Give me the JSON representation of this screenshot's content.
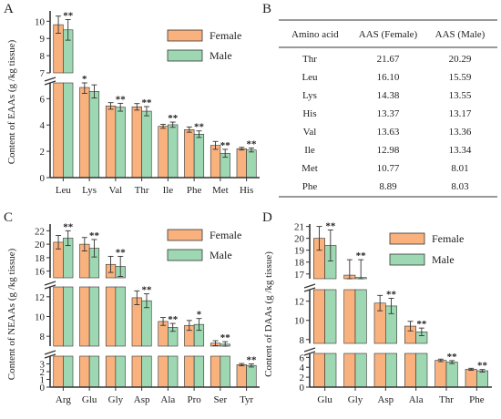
{
  "colors": {
    "female": "#F9B27E",
    "male": "#9ED8B2",
    "axis": "#333333",
    "error": "#333333"
  },
  "legend": {
    "female": "Female",
    "male": "Male"
  },
  "chart_data": [
    {
      "panel": "A",
      "type": "bar",
      "ylabel": "Content of EAAs (g /kg tissue)",
      "categories": [
        "Leu",
        "Lys",
        "Val",
        "Thr",
        "Ile",
        "Phe",
        "Met",
        "His"
      ],
      "series": [
        {
          "name": "Female",
          "values": [
            9.8,
            6.85,
            5.45,
            5.38,
            3.9,
            3.65,
            2.45,
            2.2
          ],
          "errors": [
            0.5,
            0.45,
            0.25,
            0.25,
            0.15,
            0.2,
            0.3,
            0.1
          ]
        },
        {
          "name": "Male",
          "values": [
            9.5,
            6.55,
            5.35,
            5.05,
            4.02,
            3.3,
            1.85,
            2.1
          ],
          "errors": [
            0.6,
            0.5,
            0.3,
            0.35,
            0.2,
            0.25,
            0.3,
            0.15
          ]
        }
      ],
      "significance": [
        "**",
        "",
        "**",
        "**",
        "**",
        "**",
        "**",
        "**"
      ],
      "extra_marks": [
        "",
        "*",
        "",
        "",
        "",
        "",
        "",
        ""
      ],
      "axis_segments": [
        {
          "range": [
            7,
            10.6
          ],
          "ticks": [
            7,
            8,
            9,
            10
          ]
        },
        {
          "range": [
            0,
            7.2
          ],
          "ticks": [
            0,
            2,
            4,
            6
          ]
        }
      ]
    },
    {
      "panel": "C",
      "type": "bar",
      "ylabel": "Content of NEAAs (g /kg tissue)",
      "categories": [
        "Arg",
        "Glu",
        "Gly",
        "Asp",
        "Ala",
        "Pro",
        "Ser",
        "Tyr"
      ],
      "series": [
        {
          "name": "Female",
          "values": [
            20.3,
            20.0,
            17.0,
            11.9,
            9.5,
            9.1,
            7.3,
            2.9
          ],
          "errors": [
            1.0,
            1.0,
            1.2,
            0.7,
            0.4,
            0.5,
            0.25,
            0.15
          ]
        },
        {
          "name": "Male",
          "values": [
            20.9,
            19.4,
            16.7,
            11.6,
            8.9,
            9.2,
            7.2,
            2.8
          ],
          "errors": [
            1.1,
            1.3,
            1.5,
            0.7,
            0.4,
            0.6,
            0.25,
            0.2
          ]
        }
      ],
      "significance": [
        "**",
        "**",
        "**",
        "**",
        "**",
        "*",
        "**",
        "**"
      ],
      "axis_segments": [
        {
          "range": [
            15,
            23
          ],
          "ticks": [
            16,
            18,
            20,
            22
          ]
        },
        {
          "range": [
            7,
            13
          ],
          "ticks": [
            8,
            10,
            12
          ]
        },
        {
          "range": [
            0,
            4
          ],
          "ticks": [
            0,
            1,
            2,
            3
          ]
        }
      ]
    },
    {
      "panel": "D",
      "type": "bar",
      "ylabel": "Content of DAAs (g /kg tissue)",
      "categories": [
        "Glu",
        "Gly",
        "Asp",
        "Ala",
        "Thr",
        "Phe"
      ],
      "series": [
        {
          "name": "Female",
          "values": [
            20.0,
            16.9,
            11.8,
            9.4,
            5.4,
            3.6
          ],
          "errors": [
            1.0,
            1.3,
            0.8,
            0.5,
            0.25,
            0.2
          ]
        },
        {
          "name": "Male",
          "values": [
            19.4,
            16.7,
            11.5,
            8.8,
            5.05,
            3.3
          ],
          "errors": [
            1.3,
            1.5,
            0.8,
            0.4,
            0.3,
            0.25
          ]
        }
      ],
      "significance": [
        "**",
        "**",
        "**",
        "**",
        "**",
        "**"
      ],
      "axis_segments": [
        {
          "range": [
            16.6,
            21.2
          ],
          "ticks": [
            17,
            18,
            19,
            20,
            21
          ]
        },
        {
          "range": [
            7.6,
            13.2
          ],
          "ticks": [
            8,
            10,
            12
          ]
        },
        {
          "range": [
            0,
            6.8
          ],
          "ticks": [
            0,
            2,
            4,
            6
          ]
        }
      ]
    }
  ],
  "table": {
    "panel": "B",
    "headers": [
      "Amino acid",
      "AAS (Female)",
      "AAS (Male)"
    ],
    "rows": [
      [
        "Thr",
        "21.67",
        "20.29"
      ],
      [
        "Leu",
        "16.10",
        "15.59"
      ],
      [
        "Lys",
        "14.38",
        "13.55"
      ],
      [
        "His",
        "13.37",
        "13.17"
      ],
      [
        "Val",
        "13.63",
        "13.36"
      ],
      [
        "Ile",
        "12.98",
        "13.34"
      ],
      [
        "Met",
        "10.77",
        "8.01"
      ],
      [
        "Phe",
        "8.89",
        "8.03"
      ]
    ]
  }
}
